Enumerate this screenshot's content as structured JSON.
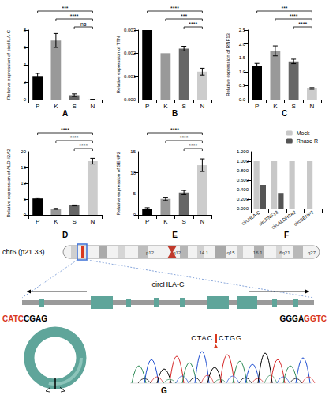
{
  "chart_data": [
    {
      "label": "A",
      "type": "bar",
      "ylabel": "Relative expression of circHLA-C",
      "categories": [
        "P",
        "K",
        "S",
        "N"
      ],
      "values": [
        2.7,
        6.8,
        0.5,
        0.02
      ],
      "errors": [
        0.3,
        0.8,
        0.15,
        0.01
      ],
      "colors": [
        "#000000",
        "#999999",
        "#666666",
        "#cccccc"
      ],
      "ylim": [
        0,
        8
      ],
      "yticks": [
        0,
        2,
        4,
        6,
        8
      ],
      "grid": false,
      "comparisons": [
        {
          "from": "P",
          "to": "N",
          "label": "***"
        },
        {
          "from": "K",
          "to": "N",
          "label": "****"
        },
        {
          "from": "S",
          "to": "N",
          "label": "ns"
        }
      ]
    },
    {
      "label": "B",
      "type": "bar",
      "ylabel": "Relative expression of TTN",
      "categories": [
        "P",
        "K",
        "S",
        "N"
      ],
      "values": [
        0.003,
        0.002,
        0.0022,
        0.0012
      ],
      "errors": [
        0,
        0,
        0.0001,
        0.00015
      ],
      "colors": [
        "#000000",
        "#999999",
        "#666666",
        "#cccccc"
      ],
      "ylim": [
        0,
        0.003
      ],
      "yticks": [
        {
          "value": 0,
          "label": "0.000"
        },
        0.001,
        0.002,
        0.003
      ],
      "grid": false,
      "comparisons": [
        {
          "from": "P",
          "to": "N",
          "label": "****"
        },
        {
          "from": "K",
          "to": "N",
          "label": "***"
        },
        {
          "from": "S",
          "to": "N",
          "label": "****"
        }
      ]
    },
    {
      "label": "C",
      "type": "bar",
      "ylabel": "Relative expression of RNF13",
      "categories": [
        "P",
        "K",
        "S",
        "N"
      ],
      "values": [
        1.2,
        1.75,
        1.37,
        0.4
      ],
      "errors": [
        0.1,
        0.18,
        0.08,
        0.03
      ],
      "colors": [
        "#000000",
        "#999999",
        "#666666",
        "#cccccc"
      ],
      "ylim": [
        0,
        2.5
      ],
      "yticks": [
        {
          "value": 0,
          "label": "0.0"
        },
        0.5,
        {
          "value": 1,
          "label": "1.0"
        },
        1.5,
        {
          "value": 2,
          "label": "2.0"
        },
        2.5
      ],
      "grid": false,
      "comparisons": [
        {
          "from": "P",
          "to": "N",
          "label": "***"
        },
        {
          "from": "K",
          "to": "N",
          "label": "****"
        },
        {
          "from": "S",
          "to": "N",
          "label": "****"
        }
      ]
    },
    {
      "label": "D",
      "type": "bar",
      "ylabel": "Relative expression of ALDH2A2",
      "categories": [
        "P",
        "K",
        "S",
        "N"
      ],
      "values": [
        5.2,
        1.9,
        3.0,
        17
      ],
      "errors": [
        0.2,
        0.15,
        0.15,
        0.9
      ],
      "colors": [
        "#000000",
        "#999999",
        "#666666",
        "#cccccc"
      ],
      "ylim": [
        0,
        20
      ],
      "yticks": [
        0,
        5,
        10,
        15,
        20
      ],
      "grid": false,
      "comparisons": [
        {
          "from": "P",
          "to": "N",
          "label": "****"
        },
        {
          "from": "K",
          "to": "N",
          "label": "****"
        },
        {
          "from": "S",
          "to": "N",
          "label": "****"
        }
      ]
    },
    {
      "label": "E",
      "type": "bar",
      "ylabel": "Relative expression of SENP2",
      "categories": [
        "P",
        "K",
        "S",
        "N"
      ],
      "values": [
        1.5,
        3.8,
        5.3,
        11.8
      ],
      "errors": [
        0.2,
        0.4,
        0.5,
        1.5
      ],
      "colors": [
        "#000000",
        "#999999",
        "#666666",
        "#cccccc"
      ],
      "ylim": [
        0,
        15
      ],
      "yticks": [
        0,
        5,
        10,
        15
      ],
      "grid": false,
      "comparisons": [
        {
          "from": "P",
          "to": "N",
          "label": "****"
        },
        {
          "from": "K",
          "to": "N",
          "label": "****"
        },
        {
          "from": "S",
          "to": "N",
          "label": "****"
        }
      ]
    },
    {
      "label": "F",
      "type": "bar",
      "categories": [
        "circHLA-C",
        "circRNF13",
        "circALDH3A2",
        "circSENP2"
      ],
      "series": [
        {
          "name": "Mock",
          "color": "#c8c8c8",
          "values": [
            1,
            1,
            1,
            1
          ]
        },
        {
          "name": "Rnase R",
          "color": "#555555",
          "values": [
            0.5,
            0.33,
            0,
            0
          ]
        }
      ],
      "ylim": [
        0,
        1.2
      ],
      "yticks": [
        {
          "value": 0,
          "label": "0.000"
        },
        {
          "value": 0.2,
          "label": "0.200"
        },
        {
          "value": 0.4,
          "label": "0.400"
        },
        {
          "value": 0.6,
          "label": "0.600"
        },
        {
          "value": 0.8,
          "label": "0.800"
        },
        {
          "value": 1,
          "label": "1.000"
        },
        {
          "value": 1.2,
          "label": "1.200"
        }
      ],
      "grid": false,
      "legend": "top-right"
    }
  ],
  "diagram": {
    "label": "G",
    "chromosome": "chr6 (p21.33)",
    "bands": [
      "p12",
      "q12",
      "14.1",
      "q15",
      "16.1",
      "6q21",
      "q27"
    ],
    "gene": "circHLA-C",
    "left_sequence": [
      {
        "text": "CATC",
        "color": "#d9381e"
      },
      {
        "text": "CGAG",
        "color": "#000000"
      }
    ],
    "right_sequence": [
      {
        "text": "GGGA",
        "color": "#000000"
      },
      {
        "text": "GGTC",
        "color": "#d9381e"
      }
    ],
    "junction": [
      "CTAC",
      "CTGG"
    ]
  }
}
